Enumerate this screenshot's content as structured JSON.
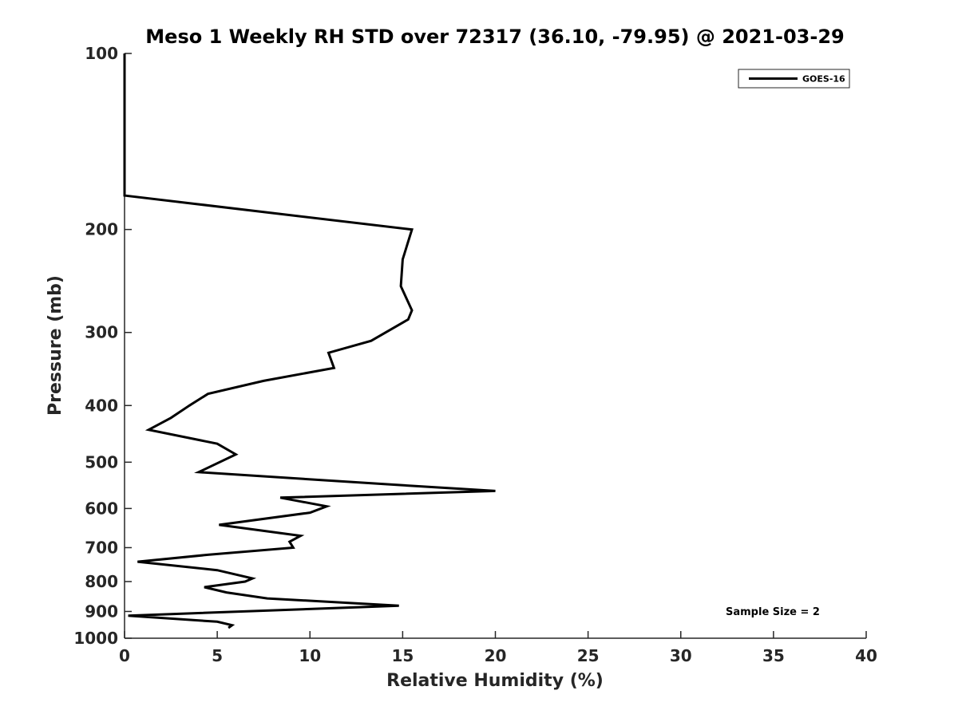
{
  "chart_data": {
    "type": "line",
    "title": "Meso 1 Weekly RH STD over 72317 (36.10, -79.95) @ 2021-03-29",
    "xlabel": "Relative Humidity (%)",
    "ylabel": "Pressure (mb)",
    "xlim": [
      0,
      40
    ],
    "ylim": [
      100,
      1000
    ],
    "y_scale": "log",
    "y_reversed": true,
    "grid": false,
    "legend_position": "top-right",
    "x_ticks": [
      0,
      5,
      10,
      15,
      20,
      25,
      30,
      35,
      40
    ],
    "x_tick_labels": [
      "0",
      "5",
      "10",
      "15",
      "20",
      "25",
      "30",
      "35",
      "40"
    ],
    "y_ticks": [
      100,
      200,
      300,
      400,
      500,
      600,
      700,
      800,
      900,
      1000
    ],
    "y_tick_labels": [
      "100",
      "200",
      "300",
      "400",
      "500",
      "600",
      "700",
      "800",
      "900",
      "1000"
    ],
    "annotation": "Sample Size = 2",
    "series": [
      {
        "name": "GOES-16",
        "color": "#000000",
        "points": [
          [
            0,
            100
          ],
          [
            0,
            125
          ],
          [
            0,
            150
          ],
          [
            0,
            175
          ],
          [
            15.5,
            200
          ],
          [
            15.0,
            225
          ],
          [
            14.9,
            250
          ],
          [
            15.5,
            275
          ],
          [
            15.3,
            285
          ],
          [
            13.3,
            310
          ],
          [
            11.0,
            325
          ],
          [
            11.3,
            345
          ],
          [
            7.5,
            363
          ],
          [
            4.5,
            382
          ],
          [
            3.5,
            400
          ],
          [
            2.5,
            420
          ],
          [
            1.3,
            440
          ],
          [
            5.0,
            465
          ],
          [
            6.0,
            485
          ],
          [
            4.0,
            520
          ],
          [
            14.0,
            545
          ],
          [
            20.0,
            560
          ],
          [
            8.4,
            575
          ],
          [
            10.9,
            595
          ],
          [
            10.0,
            610
          ],
          [
            5.1,
            640
          ],
          [
            9.5,
            668
          ],
          [
            8.9,
            684
          ],
          [
            9.1,
            700
          ],
          [
            4.5,
            720
          ],
          [
            0.7,
            740
          ],
          [
            5.0,
            765
          ],
          [
            6.9,
            790
          ],
          [
            6.5,
            800
          ],
          [
            4.3,
            818
          ],
          [
            5.5,
            835
          ],
          [
            7.7,
            855
          ],
          [
            14.8,
            880
          ],
          [
            0.2,
            915
          ],
          [
            5.0,
            937
          ],
          [
            5.8,
            950
          ],
          [
            5.6,
            960
          ]
        ]
      }
    ]
  }
}
